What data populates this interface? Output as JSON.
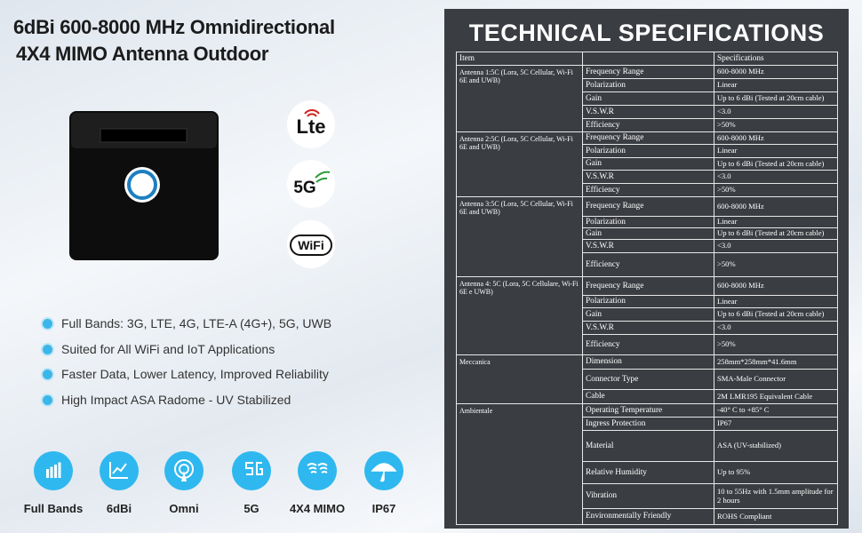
{
  "title_lines": [
    "6dBi 600-8000 MHz Omnidirectional",
    "4X4 MIMO Antenna Outdoor"
  ],
  "badges": [
    "Lte",
    "5G",
    "WiFi"
  ],
  "bullets": [
    "Full Bands: 3G, LTE, 4G, LTE-A (4G+), 5G, UWB",
    "Suited for All WiFi and IoT Applications",
    "Faster Data,  Lower Latency,  Improved Reliability",
    "High Impact ASA Radome - UV Stabilized"
  ],
  "features": [
    "Full Bands",
    "6dBi",
    "Omni",
    "5G",
    "4X4 MIMO",
    "IP67"
  ],
  "spec_table": {
    "title": "TECHNICAL SPECIFICATIONS",
    "header": {
      "item": "Item",
      "spec": "Specifications"
    },
    "groups": [
      {
        "name": "Antenna 1:5C (Lora, 5C Cellular, Wi-Fi 6E and UWB)",
        "rows": [
          {
            "param": "Frequency Range",
            "value": "600-8000 MHz"
          },
          {
            "param": "Polarization",
            "value": "Linear"
          },
          {
            "param": "Gain",
            "value": "Up to 6 dBi (Tested at 20cm cable)"
          },
          {
            "param": "V.S.W.R",
            "value": "<3.0"
          },
          {
            "param": "Efficiency",
            "value": ">50%"
          }
        ]
      },
      {
        "name": "Antenna 2:5C (Lora, 5C Cellular, Wi-Fi 6E and UWB)",
        "rows": [
          {
            "param": "Frequency Range",
            "value": "600-8000 MHz"
          },
          {
            "param": "Polarization",
            "value": "Linear"
          },
          {
            "param": "Gain",
            "value": "Up to 6 dBi (Tested at 20cm cable)"
          },
          {
            "param": "V.S.W.R",
            "value": "<3.0"
          },
          {
            "param": "Efficiency",
            "value": ">50%"
          }
        ]
      },
      {
        "name": "Antenna 3:5C (Lora, 5C Cellular, Wi-Fi 6E and UWB)",
        "rows": [
          {
            "param": "Frequency Range",
            "value": "600-8000 MHz"
          },
          {
            "param": "Polarization",
            "value": "Linear"
          },
          {
            "param": "Gain",
            "value": "Up to 6 dBi (Tested at 20cm cable)"
          },
          {
            "param": "V.S.W.R",
            "value": "<3.0"
          },
          {
            "param": "Efficiency",
            "value": ">50%"
          }
        ]
      },
      {
        "name": "Antenna 4: 5C (Lora, 5C Cellulare, Wi-Fi 6E e UWB)",
        "rows": [
          {
            "param": "Frequency Range",
            "value": "600-8000 MHz"
          },
          {
            "param": "Polarization",
            "value": "Linear"
          },
          {
            "param": "Gain",
            "value": "Up to 6 dBi (Tested at 20cm cable)"
          },
          {
            "param": "V.S.W.R",
            "value": "<3.0"
          },
          {
            "param": "Efficiency",
            "value": ">50%"
          }
        ]
      },
      {
        "name": "Meccanica",
        "rows": [
          {
            "param": "Dimension",
            "value": "258mm*258mm*41.6mm"
          },
          {
            "param": "Connector Type",
            "value": "SMA-Male Connector"
          },
          {
            "param": "Cable",
            "value": "2M LMR195 Equivalent Cable"
          }
        ]
      },
      {
        "name": "Ambientale",
        "rows": [
          {
            "param": "Operating Temperature",
            "value": "-40° C to +85° C"
          },
          {
            "param": "Ingress Protection",
            "value": "IP67"
          },
          {
            "param": "Material",
            "value": "ASA (UV-stabilized)"
          },
          {
            "param": "Relative Humidity",
            "value": "Up to 95%"
          },
          {
            "param": "Vibration",
            "value": "10 to 55Hz with 1.5mm amplitude for 2 hours"
          },
          {
            "param": "Environmentally Friendly",
            "value": "ROHS Compliant"
          }
        ]
      }
    ]
  }
}
